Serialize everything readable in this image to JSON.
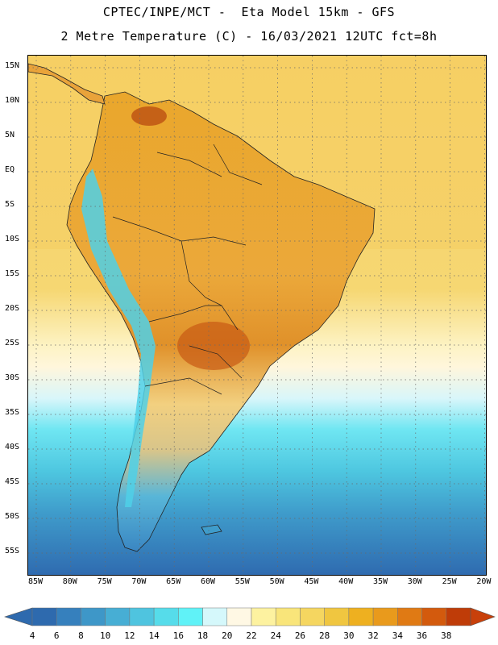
{
  "header": {
    "line1": "CPTEC/INPE/MCT -  Eta Model 15km - GFS",
    "line2": "2 Metre Temperature (C) - 16/03/2021 12UTC fct=8h"
  },
  "map": {
    "variable": "2 Metre Temperature",
    "units": "C",
    "lat_labels": [
      "15N",
      "10N",
      "5N",
      "EQ",
      "5S",
      "10S",
      "15S",
      "20S",
      "25S",
      "30S",
      "35S",
      "40S",
      "45S",
      "50S",
      "55S"
    ],
    "lon_labels": [
      "85W",
      "80W",
      "75W",
      "70W",
      "65W",
      "60W",
      "55W",
      "50W",
      "45W",
      "40W",
      "35W",
      "30W",
      "25W",
      "20W"
    ]
  },
  "colorbar": {
    "labels": [
      "4",
      "6",
      "8",
      "10",
      "12",
      "14",
      "16",
      "18",
      "20",
      "22",
      "24",
      "26",
      "28",
      "30",
      "32",
      "34",
      "36",
      "38"
    ],
    "colors": [
      "#2e6aae",
      "#3680bd",
      "#3e97c8",
      "#47aed4",
      "#4fc4df",
      "#56dcea",
      "#60f2f7",
      "#d5f8fb",
      "#fff8e4",
      "#fdf2a0",
      "#f9e57a",
      "#f5d660",
      "#f0c640",
      "#eeb020",
      "#e99a1c",
      "#e07a14",
      "#d35a0d",
      "#bf3c08"
    ],
    "low_color": "#2e6aae",
    "high_color": "#c8400a"
  }
}
